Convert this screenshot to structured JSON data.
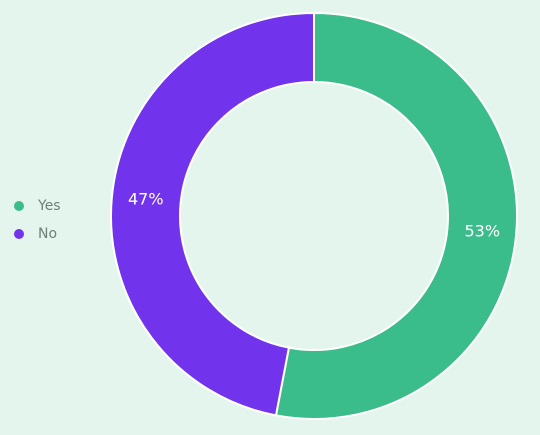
{
  "chart_data": {
    "type": "pie",
    "donut": true,
    "categories": [
      "Yes",
      "No"
    ],
    "values": [
      53,
      47
    ],
    "data_labels": [
      "53%",
      "47%"
    ],
    "colors": [
      "#3bbd8b",
      "#7134ec"
    ],
    "legend_position": "left",
    "title": ""
  }
}
